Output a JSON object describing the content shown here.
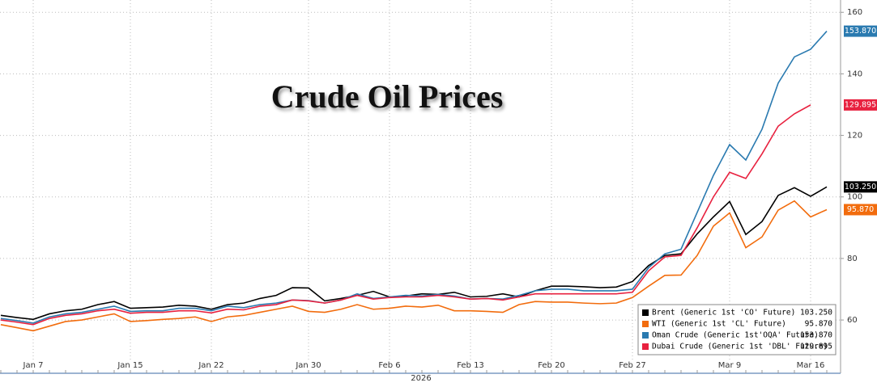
{
  "chart_data": {
    "type": "line",
    "title": "Crude Oil Prices",
    "x_label": "2026",
    "categories": [
      null,
      null,
      "Jan 7",
      null,
      null,
      null,
      null,
      null,
      "Jan 15",
      null,
      null,
      null,
      null,
      "Jan 22",
      null,
      null,
      null,
      null,
      null,
      "Jan 30",
      null,
      null,
      null,
      null,
      "Feb 6",
      null,
      null,
      null,
      null,
      "Feb 13",
      null,
      null,
      null,
      null,
      "Feb 20",
      null,
      null,
      null,
      null,
      "Feb 27",
      null,
      null,
      null,
      null,
      null,
      "Mar 9",
      null,
      null,
      null,
      null,
      "Mar 16",
      null
    ],
    "ylim": [
      44,
      164
    ],
    "yticks": [
      60,
      80,
      100,
      120,
      140,
      160
    ],
    "grid": true,
    "legend": "bottom-right",
    "series": [
      {
        "name": "Brent (Generic 1st 'CO' Future)",
        "color": "#000000",
        "values": [
          61.5,
          60.8,
          60.2,
          62,
          63,
          63.5,
          65,
          66,
          63.8,
          64,
          64.2,
          64.8,
          64.5,
          63.5,
          65,
          65.5,
          67,
          68,
          70.5,
          70.4,
          66.2,
          67,
          68,
          69.3,
          67.5,
          67.8,
          68.5,
          68.3,
          69,
          67.5,
          67.7,
          68.5,
          67.5,
          69.5,
          71,
          71,
          70.8,
          70.5,
          70.7,
          72.5,
          77.7,
          81,
          81.5,
          88,
          93.5,
          98.5,
          87.8,
          92,
          100.5,
          103,
          100.2,
          103.25
        ],
        "value_labels": [
          null,
          null,
          null,
          null,
          null,
          null,
          null,
          null,
          null,
          null,
          null,
          null,
          null,
          null,
          null,
          null,
          null,
          null,
          null,
          null,
          null,
          null,
          null,
          null,
          null,
          null,
          null,
          null,
          null,
          null,
          null,
          null,
          null,
          null,
          null,
          null,
          null,
          null,
          null,
          null,
          null,
          null,
          null,
          null,
          null,
          null,
          null,
          null,
          null,
          null,
          null,
          "103.250"
        ]
      },
      {
        "name": "WTI (Generic 1st 'CL' Future)",
        "color": "#f26c0d",
        "values": [
          58.5,
          57.5,
          56.5,
          58,
          59.5,
          60,
          61,
          62,
          59.5,
          59.8,
          60.2,
          60.5,
          61,
          59.5,
          61,
          61.5,
          62.5,
          63.5,
          64.5,
          62.8,
          62.5,
          63.5,
          65,
          63.5,
          63.8,
          64.5,
          64.2,
          64.8,
          63,
          63,
          62.8,
          62.5,
          65,
          66,
          65.8,
          65.8,
          65.5,
          65.3,
          65.5,
          67.3,
          71,
          74.5,
          74.6,
          81,
          90.5,
          94.8,
          83.5,
          87,
          95.7,
          98.7,
          93.5,
          95.87
        ],
        "value_labels": [
          null,
          null,
          null,
          null,
          null,
          null,
          null,
          null,
          null,
          null,
          null,
          null,
          null,
          null,
          null,
          null,
          null,
          null,
          null,
          null,
          null,
          null,
          null,
          null,
          null,
          null,
          null,
          null,
          null,
          null,
          null,
          null,
          null,
          null,
          null,
          null,
          null,
          null,
          null,
          null,
          null,
          null,
          null,
          null,
          null,
          null,
          null,
          null,
          null,
          null,
          null,
          "95.870"
        ]
      },
      {
        "name": "Oman Crude (Generic 1st'OQA' Future)",
        "color": "#2a7ab0",
        "values": [
          60.5,
          59.8,
          59,
          61,
          62,
          62.5,
          63.5,
          64.5,
          62.8,
          63,
          63,
          63.8,
          63.8,
          63,
          64.5,
          64,
          65,
          65.5,
          66.5,
          66.3,
          65.5,
          66.5,
          68.5,
          67,
          67.5,
          68,
          67.8,
          68.3,
          67.8,
          66.8,
          67,
          66.8,
          68,
          69.5,
          70,
          70,
          69.5,
          69.5,
          69.5,
          70,
          77,
          81.5,
          83,
          95,
          107,
          117,
          112,
          122,
          137,
          145.5,
          148,
          153.87
        ],
        "value_labels": [
          null,
          null,
          null,
          null,
          null,
          null,
          null,
          null,
          null,
          null,
          null,
          null,
          null,
          null,
          null,
          null,
          null,
          null,
          null,
          null,
          null,
          null,
          null,
          null,
          null,
          null,
          null,
          null,
          null,
          null,
          null,
          null,
          null,
          null,
          null,
          null,
          null,
          null,
          null,
          null,
          null,
          null,
          null,
          null,
          null,
          null,
          null,
          null,
          null,
          null,
          null,
          "153.870"
        ]
      },
      {
        "name": "Dubai Crude (Generic 1st 'DBL' Future)",
        "color": "#e8213f",
        "values": [
          60,
          59.3,
          58.5,
          60.5,
          61.5,
          62,
          63,
          63.5,
          62.2,
          62.5,
          62.5,
          63,
          63,
          62.3,
          63.5,
          63.3,
          64.5,
          65,
          66.5,
          66.2,
          65.5,
          66.5,
          68,
          66.8,
          67.3,
          67.5,
          67.5,
          68,
          67.5,
          66.8,
          67,
          66.5,
          67.5,
          68.5,
          68.5,
          68.5,
          68.5,
          68.5,
          68.5,
          69,
          76,
          80.5,
          81,
          90,
          100,
          108,
          106,
          114,
          123,
          127,
          129.895,
          null
        ],
        "value_labels": [
          null,
          null,
          null,
          null,
          null,
          null,
          null,
          null,
          null,
          null,
          null,
          null,
          null,
          null,
          null,
          null,
          null,
          null,
          null,
          null,
          null,
          null,
          null,
          null,
          null,
          null,
          null,
          null,
          null,
          null,
          null,
          null,
          null,
          null,
          null,
          null,
          null,
          null,
          null,
          null,
          null,
          null,
          null,
          null,
          null,
          null,
          null,
          null,
          null,
          null,
          "129.895",
          null
        ]
      }
    ]
  }
}
